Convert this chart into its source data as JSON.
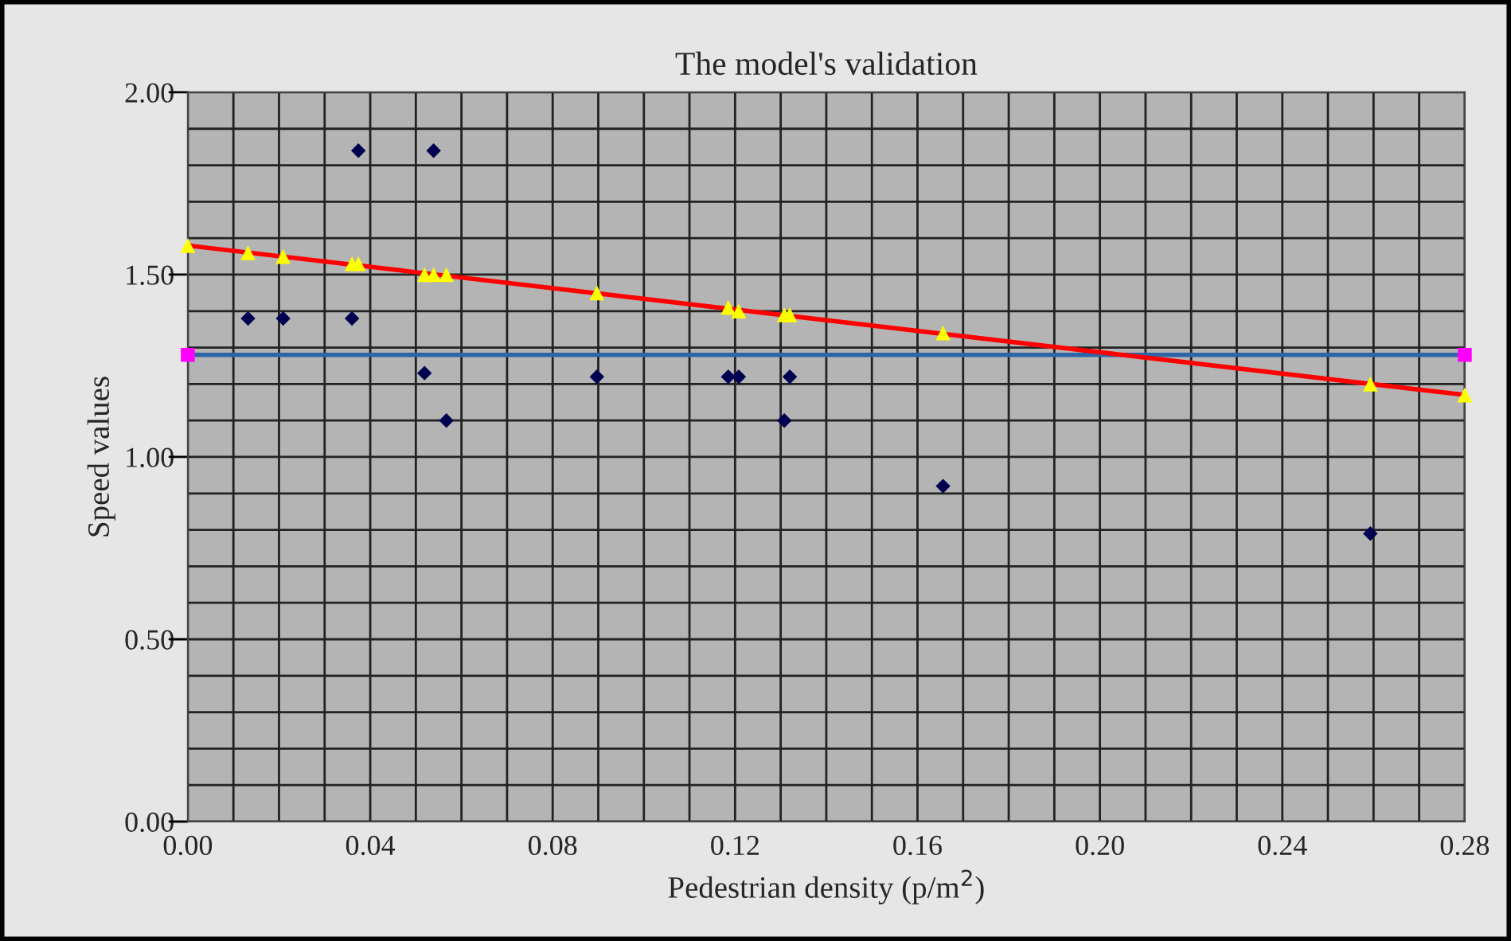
{
  "chart_data": {
    "type": "scatter",
    "title": "The model's validation",
    "xlabel": "Pedestrian density (p/m$^{2}$)",
    "ylabel": "Speed values",
    "xlim": [
      0,
      0.28
    ],
    "ylim": [
      0,
      2.0
    ],
    "xticks": [
      {
        "value": 0,
        "label": "0.00"
      },
      {
        "value": 0.01,
        "label": null
      },
      {
        "value": 0.02,
        "label": null
      },
      {
        "value": 0.03,
        "label": null
      },
      {
        "value": 0.04,
        "label": "0.04"
      },
      {
        "value": 0.05,
        "label": null
      },
      {
        "value": 0.06,
        "label": null
      },
      {
        "value": 0.07,
        "label": null
      },
      {
        "value": 0.08,
        "label": "0.08"
      },
      {
        "value": 0.09,
        "label": null
      },
      {
        "value": 0.1,
        "label": null
      },
      {
        "value": 0.11,
        "label": null
      },
      {
        "value": 0.12,
        "label": "0.12"
      },
      {
        "value": 0.13,
        "label": null
      },
      {
        "value": 0.14,
        "label": null
      },
      {
        "value": 0.15,
        "label": null
      },
      {
        "value": 0.16,
        "label": "0.16"
      },
      {
        "value": 0.17,
        "label": null
      },
      {
        "value": 0.18,
        "label": null
      },
      {
        "value": 0.19,
        "label": null
      },
      {
        "value": 0.2,
        "label": "0.20"
      },
      {
        "value": 0.21,
        "label": null
      },
      {
        "value": 0.22,
        "label": null
      },
      {
        "value": 0.23,
        "label": null
      },
      {
        "value": 0.24,
        "label": "0.24"
      },
      {
        "value": 0.25,
        "label": null
      },
      {
        "value": 0.26,
        "label": null
      },
      {
        "value": 0.27,
        "label": null
      },
      {
        "value": 0.28,
        "label": "0.28"
      }
    ],
    "yticks": [
      {
        "value": 0,
        "label": "0.00"
      },
      {
        "value": 0.1,
        "label": null
      },
      {
        "value": 0.2,
        "label": null
      },
      {
        "value": 0.3,
        "label": null
      },
      {
        "value": 0.4,
        "label": null
      },
      {
        "value": 0.5,
        "label": "0.50"
      },
      {
        "value": 0.6,
        "label": null
      },
      {
        "value": 0.7,
        "label": null
      },
      {
        "value": 0.8,
        "label": null
      },
      {
        "value": 0.9,
        "label": null
      },
      {
        "value": 1.0,
        "label": "1.00"
      },
      {
        "value": 1.1,
        "label": null
      },
      {
        "value": 1.2,
        "label": null
      },
      {
        "value": 1.3,
        "label": null
      },
      {
        "value": 1.4,
        "label": null
      },
      {
        "value": 1.5,
        "label": "1.50"
      },
      {
        "value": 1.6,
        "label": null
      },
      {
        "value": 1.7,
        "label": null
      },
      {
        "value": 1.8,
        "label": null
      },
      {
        "value": 1.9,
        "label": null
      },
      {
        "value": 2.0,
        "label": "2.00"
      }
    ],
    "grid": true,
    "legend": false,
    "series": [
      {
        "type": "line",
        "color": "#2e64a8",
        "marker": "none",
        "x": [
          0,
          0.28
        ],
        "values": [
          1.28,
          1.28
        ]
      },
      {
        "color": "#ff00ff",
        "marker": "square",
        "x": [
          0,
          0.28
        ],
        "values": [
          1.28,
          1.28
        ]
      },
      {
        "type": "line",
        "color": "#ff0000",
        "marker": "none",
        "x": [
          0,
          0.28
        ],
        "values": [
          1.58,
          1.17
        ]
      },
      {
        "color": "#ffff00",
        "marker": "triangle",
        "x": [
          0,
          0.0132,
          0.0209,
          0.036,
          0.0374,
          0.0519,
          0.0539,
          0.0567,
          0.0897,
          0.1185,
          0.1208,
          0.1308,
          0.132,
          0.1656,
          0.2593,
          0.28
        ],
        "values": [
          1.58,
          1.56,
          1.55,
          1.53,
          1.53,
          1.5,
          1.5,
          1.5,
          1.45,
          1.41,
          1.4,
          1.39,
          1.39,
          1.34,
          1.2,
          1.17
        ]
      },
      {
        "color": "#000050",
        "marker": "diamond",
        "x": [
          0.0132,
          0.0209,
          0.036,
          0.0374,
          0.0519,
          0.0539,
          0.0567,
          0.0897,
          0.1185,
          0.1208,
          0.1308,
          0.132,
          0.1656,
          0.2593
        ],
        "values": [
          1.38,
          1.38,
          1.38,
          1.84,
          1.23,
          1.84,
          1.1,
          1.22,
          1.22,
          1.22,
          1.1,
          1.22,
          0.92,
          0.79
        ]
      }
    ]
  }
}
